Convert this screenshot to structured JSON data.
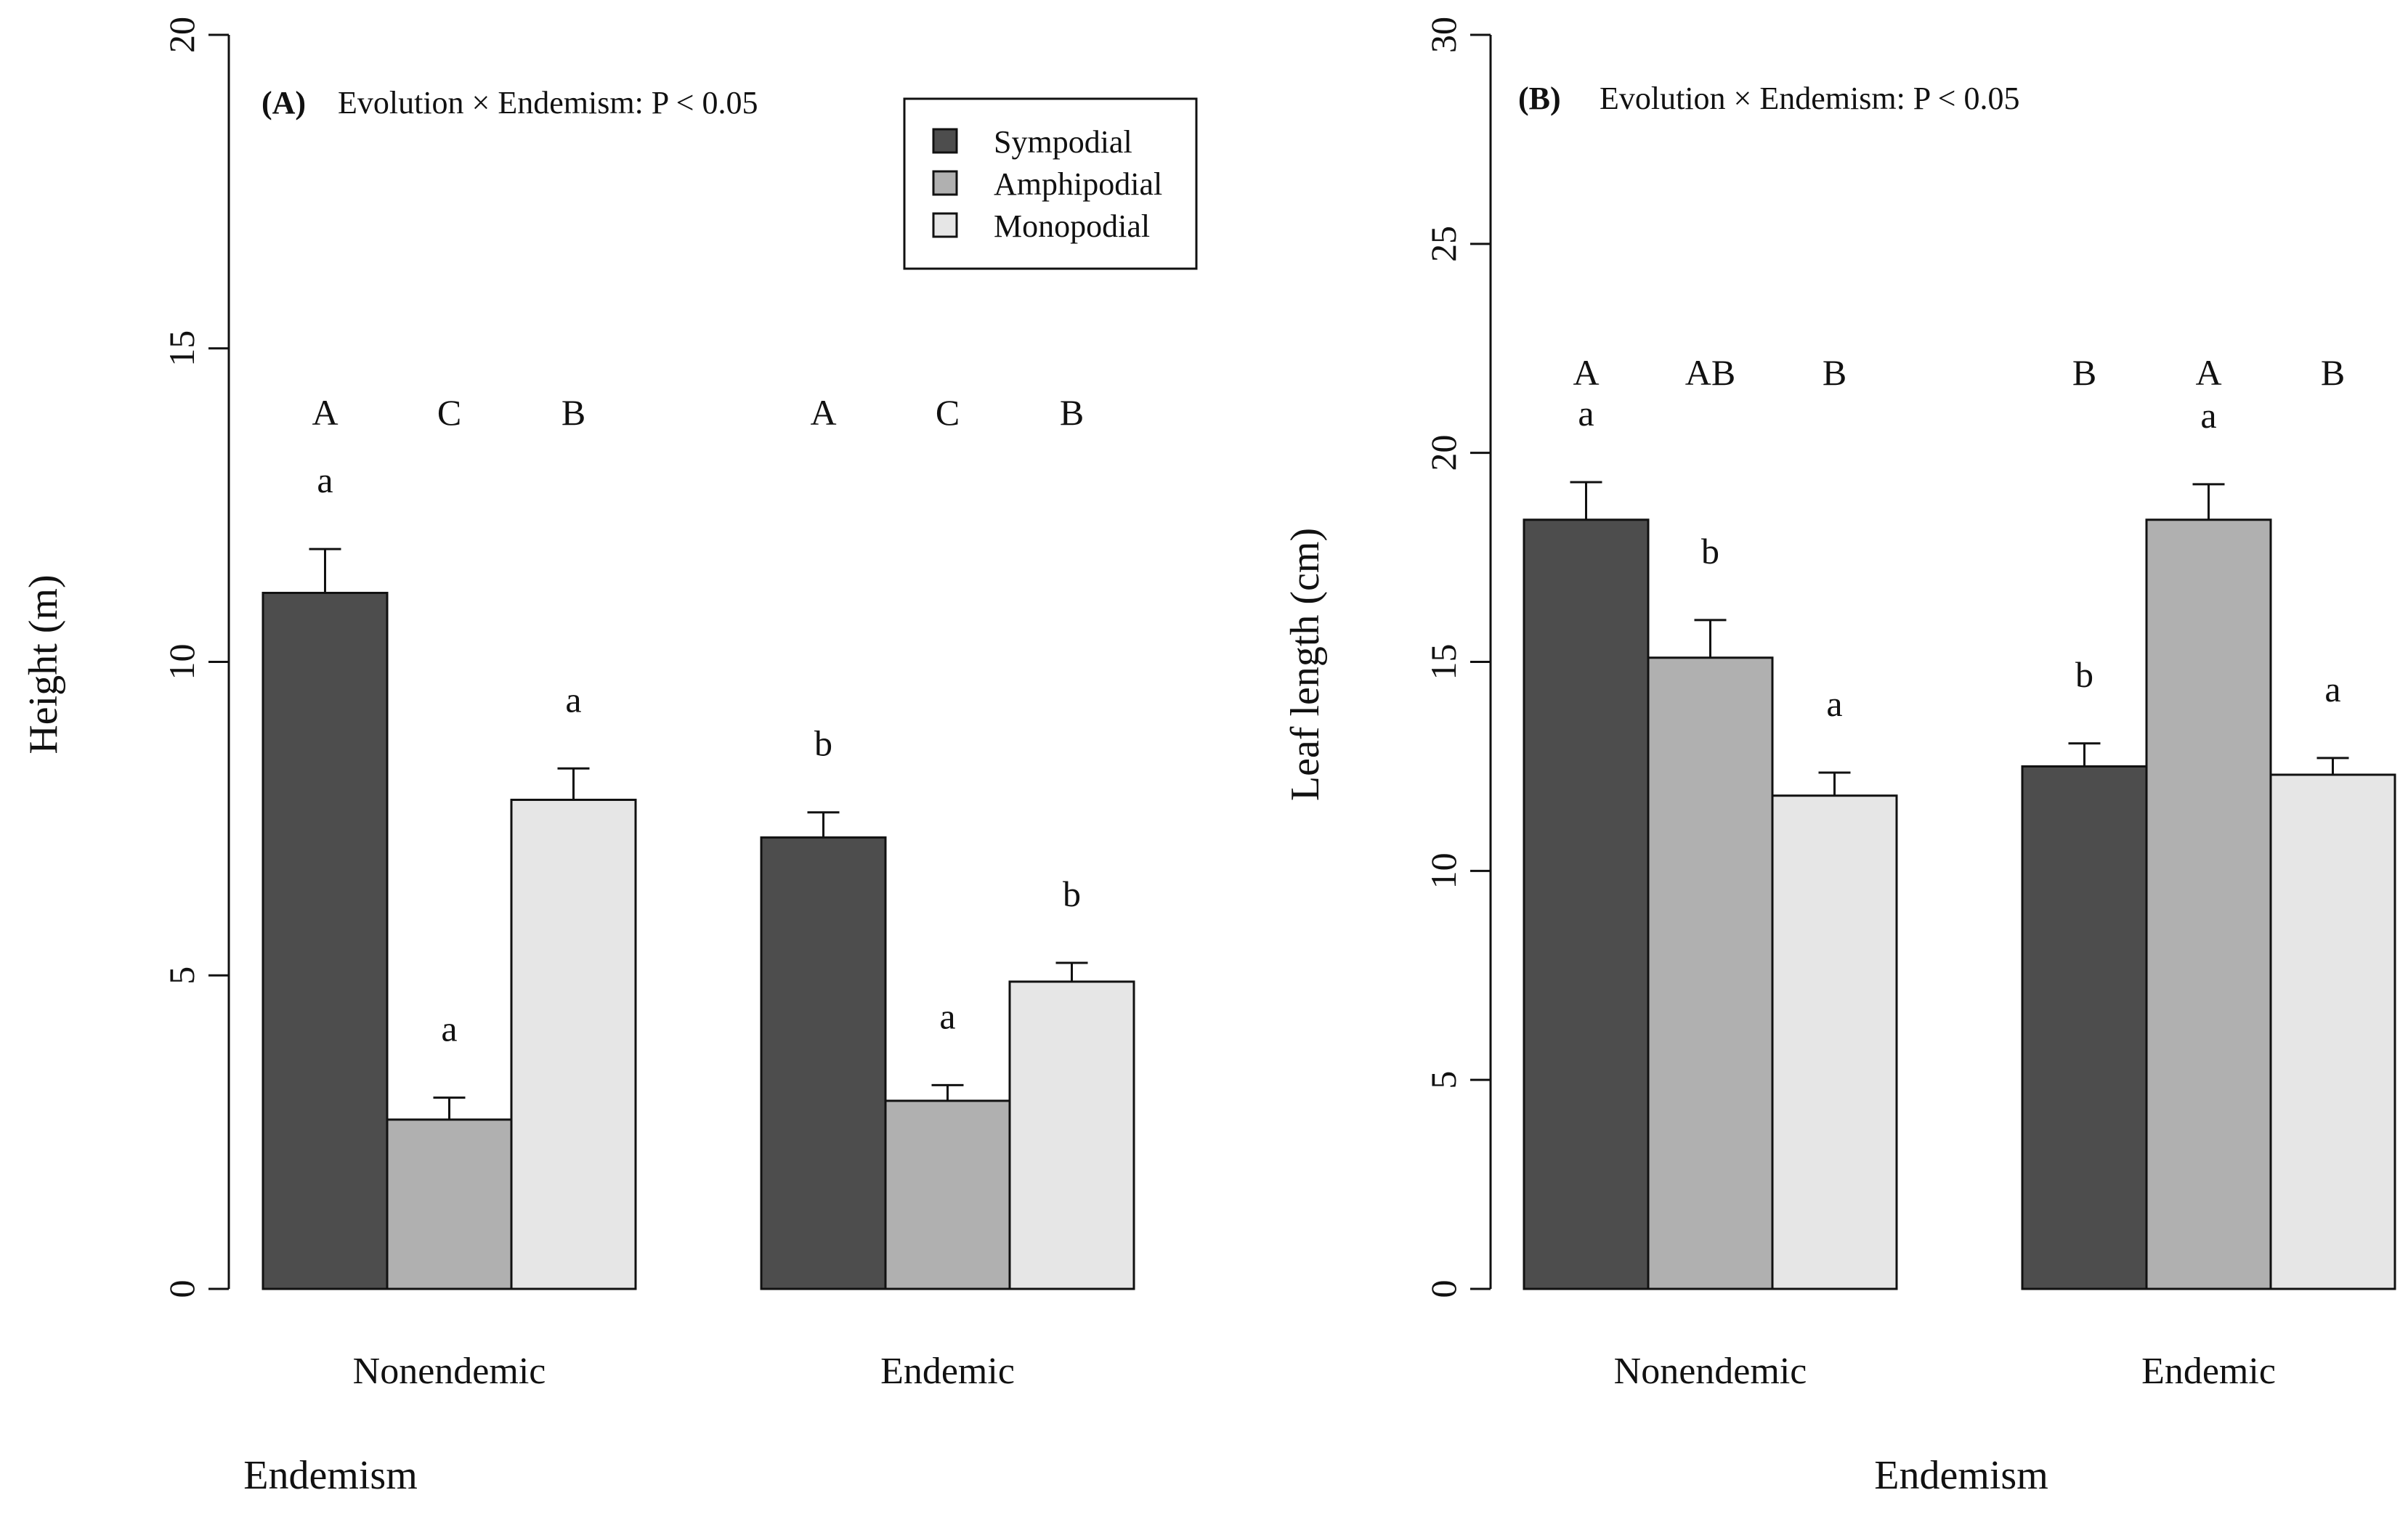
{
  "chart_data": [
    {
      "type": "bar",
      "panel_label": "(A)",
      "title": "Evolution × Endemism: P < 0.05",
      "xlabel": "Endemism",
      "ylabel": "Height (m)",
      "ylim": [
        0,
        20
      ],
      "yticks": [
        "0",
        "5",
        "10",
        "15",
        "20"
      ],
      "grid": false,
      "categories": [
        "Nonendemic",
        "Endemic"
      ],
      "series": [
        {
          "name": "Sympodial",
          "color": "#4d4d4d",
          "values": [
            11.1,
            7.2
          ],
          "errors": [
            0.7,
            0.4
          ],
          "within_letters": [
            "a",
            "b"
          ]
        },
        {
          "name": "Amphipodial",
          "color": "#b0b0b0",
          "values": [
            2.7,
            3.0
          ],
          "errors": [
            0.35,
            0.25
          ],
          "within_letters": [
            "a",
            "a"
          ]
        },
        {
          "name": "Monopodial",
          "color": "#e6e6e6",
          "values": [
            7.8,
            4.9
          ],
          "errors": [
            0.5,
            0.3
          ],
          "within_letters": [
            "a",
            "b"
          ]
        }
      ],
      "between_letters": [
        [
          "A",
          "C",
          "B"
        ],
        [
          "A",
          "C",
          "B"
        ]
      ],
      "legend": {
        "placement": "top-right",
        "entries": [
          "Sympodial",
          "Amphipodial",
          "Monopodial"
        ]
      }
    },
    {
      "type": "bar",
      "panel_label": "(B)",
      "title": "Evolution × Endemism: P < 0.05",
      "xlabel": "Endemism",
      "ylabel": "Leaf length (cm)",
      "ylim": [
        0,
        30
      ],
      "yticks": [
        "0",
        "5",
        "10",
        "15",
        "20",
        "25",
        "30"
      ],
      "grid": false,
      "categories": [
        "Nonendemic",
        "Endemic"
      ],
      "series": [
        {
          "name": "Sympodial",
          "color": "#4d4d4d",
          "values": [
            18.4,
            12.5
          ],
          "errors": [
            0.9,
            0.55
          ],
          "within_letters": [
            "a",
            "b"
          ]
        },
        {
          "name": "Amphipodial",
          "color": "#b0b0b0",
          "values": [
            15.1,
            18.4
          ],
          "errors": [
            0.9,
            0.85
          ],
          "within_letters": [
            "b",
            "a"
          ]
        },
        {
          "name": "Monopodial",
          "color": "#e6e6e6",
          "values": [
            11.8,
            12.3
          ],
          "errors": [
            0.55,
            0.4
          ],
          "within_letters": [
            "a",
            "a"
          ]
        }
      ],
      "between_letters": [
        [
          "A",
          "AB",
          "B"
        ],
        [
          "B",
          "A",
          "B"
        ]
      ]
    }
  ]
}
